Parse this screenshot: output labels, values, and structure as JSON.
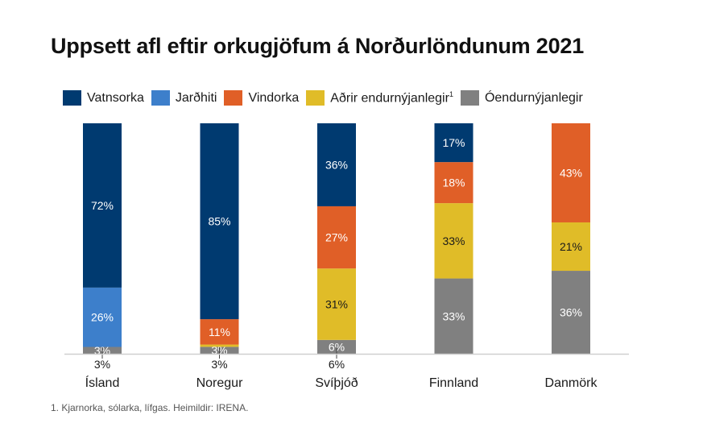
{
  "chart_data": {
    "type": "bar",
    "stacked": true,
    "normalized": true,
    "title": "Uppsett afl eftir orkugjöfum á Norðurlöndunum 2021",
    "xlabel": "",
    "ylabel": "",
    "ylim": [
      0,
      100
    ],
    "grid": false,
    "legend_position": "top",
    "categories": [
      "Ísland",
      "Noregur",
      "Svíþjóð",
      "Finnland",
      "Danmörk"
    ],
    "series": [
      {
        "name": "Óendurnýjanlegir",
        "color": "#808080",
        "values": [
          3,
          3,
          6,
          33,
          36
        ],
        "labels": [
          "3%",
          "3%",
          "6%",
          "33%",
          "36%"
        ],
        "label_text_color": "#ffffff"
      },
      {
        "name": "Aðrir endurnýjanlegir",
        "footnote_marker": "1",
        "color": "#E0BC28",
        "values": [
          0,
          1,
          31,
          33,
          21
        ],
        "labels": [
          "",
          "",
          "31%",
          "33%",
          "21%"
        ],
        "label_text_color": "#1a1a1a"
      },
      {
        "name": "Vindorka",
        "color": "#E05F27",
        "values": [
          0,
          11,
          27,
          18,
          43
        ],
        "labels": [
          "",
          "11%",
          "27%",
          "18%",
          "43%"
        ],
        "label_text_color": "#ffffff"
      },
      {
        "name": "Jarðhiti",
        "color": "#3D7FCB",
        "values": [
          26,
          0,
          0,
          0,
          0
        ],
        "labels": [
          "26%",
          "",
          "",
          "",
          ""
        ],
        "label_text_color": "#ffffff"
      },
      {
        "name": "Vatnsorka",
        "color": "#003A70",
        "values": [
          72,
          85,
          36,
          17,
          0
        ],
        "labels": [
          "72%",
          "85%",
          "36%",
          "17%",
          ""
        ],
        "label_text_color": "#ffffff"
      }
    ],
    "below_bar_labels": [
      "3%",
      "3%",
      "6%",
      "",
      ""
    ],
    "legend_order": [
      "Vatnsorka",
      "Jarðhiti",
      "Vindorka",
      "Aðrir endurnýjanlegir",
      "Óendurnýjanlegir"
    ]
  },
  "title": "Uppsett afl eftir orkugjöfum á Norðurlöndunum 2021",
  "legend": [
    {
      "label": "Vatnsorka",
      "sup": "",
      "color": "#003A70"
    },
    {
      "label": "Jarðhiti",
      "sup": "",
      "color": "#3D7FCB"
    },
    {
      "label": "Vindorka",
      "sup": "",
      "color": "#E05F27"
    },
    {
      "label": "Aðrir endurnýjanlegir",
      "sup": "1",
      "color": "#E0BC28"
    },
    {
      "label": "Óendurnýjanlegir",
      "sup": "",
      "color": "#808080"
    }
  ],
  "footnote": "1. Kjarnorka, sólarka, lífgas. Heimildir: IRENA."
}
